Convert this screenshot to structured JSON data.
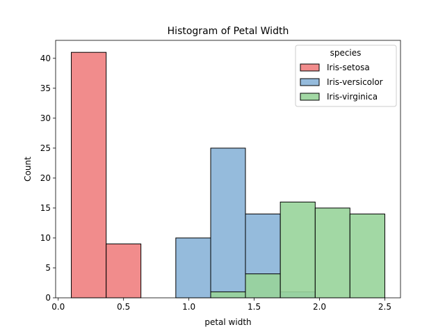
{
  "chart_data": {
    "type": "bar",
    "title": "Histogram of Petal Width",
    "xlabel": "petal width",
    "ylabel": "Count",
    "xlim": [
      -0.02,
      2.62
    ],
    "ylim": [
      0,
      43
    ],
    "xticks": [
      0.0,
      0.5,
      1.0,
      1.5,
      2.0,
      2.5
    ],
    "xtick_labels": [
      "0.0",
      "0.5",
      "1.0",
      "1.5",
      "2.0",
      "2.5"
    ],
    "yticks": [
      0,
      5,
      10,
      15,
      20,
      25,
      30,
      35,
      40
    ],
    "ytick_labels": [
      "0",
      "5",
      "10",
      "15",
      "20",
      "25",
      "30",
      "35",
      "40"
    ],
    "bin_edges": [
      0.1,
      0.367,
      0.633,
      0.9,
      1.167,
      1.433,
      1.7,
      1.967,
      2.233,
      2.5
    ],
    "grid": false,
    "legend": {
      "title": "species",
      "placement": "top-right"
    },
    "series": [
      {
        "name": "Iris-setosa",
        "color": "#f08080",
        "counts": [
          41,
          9,
          0,
          0,
          0,
          0,
          0,
          0,
          0
        ]
      },
      {
        "name": "Iris-versicolor",
        "color": "#8ab4d8",
        "counts": [
          0,
          0,
          0,
          10,
          25,
          14,
          1,
          0,
          0
        ]
      },
      {
        "name": "Iris-virginica",
        "color": "#98d49a",
        "counts": [
          0,
          0,
          0,
          0,
          1,
          4,
          16,
          15,
          14
        ]
      }
    ]
  }
}
